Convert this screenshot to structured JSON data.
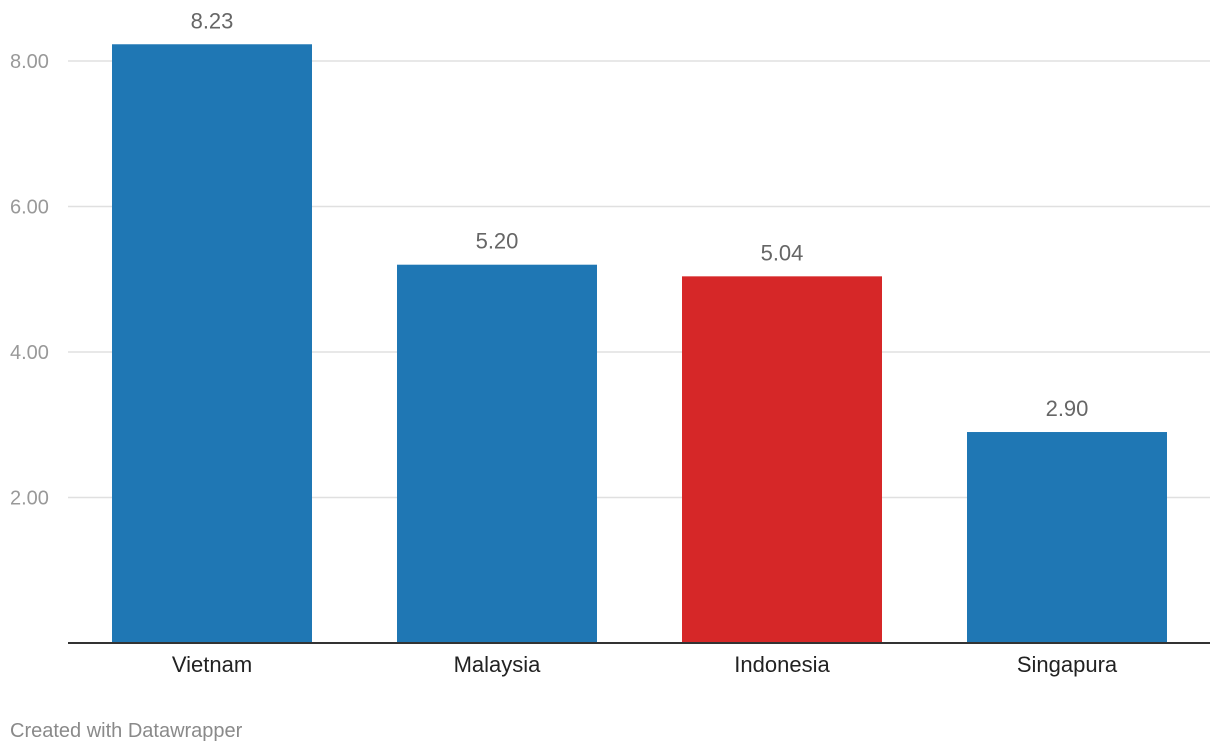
{
  "chart_data": {
    "type": "bar",
    "categories": [
      "Vietnam",
      "Malaysia",
      "Indonesia",
      "Singapura"
    ],
    "values": [
      8.23,
      5.2,
      5.04,
      2.9
    ],
    "value_labels": [
      "8.23",
      "5.20",
      "5.04",
      "2.90"
    ],
    "bar_colors": [
      "#1f77b4",
      "#1f77b4",
      "#d62728",
      "#1f77b4"
    ],
    "yticks": [
      2,
      4,
      6,
      8
    ],
    "ytick_labels": [
      "2.00",
      "4.00",
      "6.00",
      "8.00"
    ],
    "ylim": [
      0,
      8.23
    ],
    "grid": true,
    "title": "",
    "xlabel": "",
    "ylabel": ""
  },
  "footer": {
    "credit": "Created with Datawrapper"
  },
  "colors": {
    "grid": "#e0e0e0",
    "axis": "#333333",
    "tick_label": "#999999",
    "value_label": "#666666",
    "category_label": "#222222"
  }
}
